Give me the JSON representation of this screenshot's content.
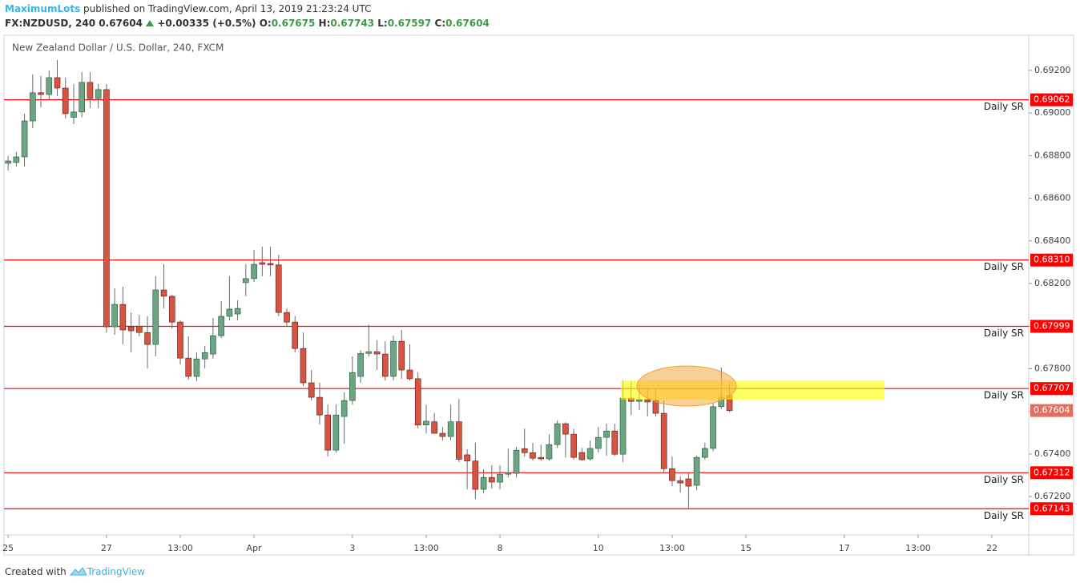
{
  "header": {
    "publisher": "MaximumLots",
    "published": "published on TradingView.com, April 13, 2019 21:23:24 UTC",
    "symbol": "FX:NZDUSD, 240",
    "price": "0.67604",
    "change": "+0.00335 (+0.5%)",
    "open_label": "O:",
    "open": "0.67675",
    "high_label": "H:",
    "high": "0.67743",
    "low_label": "L:",
    "low": "0.67597",
    "close_label": "C:",
    "close": "0.67604"
  },
  "chart_data": {
    "type": "candlestick",
    "title": "New Zealand Dollar / U.S. Dollar, 240, FXCM",
    "categories": [
      "25",
      null,
      null,
      null,
      null,
      null,
      null,
      null,
      null,
      null,
      null,
      null,
      "27",
      null,
      null,
      null,
      null,
      null,
      null,
      null,
      null,
      "13:00",
      null,
      null,
      null,
      null,
      null,
      null,
      null,
      null,
      "Apr",
      null,
      null,
      null,
      null,
      null,
      null,
      null,
      null,
      null,
      null,
      null,
      "3",
      null,
      null,
      null,
      null,
      null,
      null,
      null,
      null,
      "13:00",
      null,
      null,
      null,
      null,
      null,
      null,
      null,
      null,
      "8",
      null,
      null,
      null,
      null,
      null,
      null,
      null,
      null,
      null,
      null,
      null,
      "10",
      null,
      null,
      null,
      null,
      null,
      null,
      null,
      null,
      "13:00",
      null,
      null,
      null,
      null,
      null,
      null,
      null,
      null,
      "15",
      null,
      null,
      null,
      null,
      null,
      null,
      null,
      null,
      null,
      null,
      null,
      "17",
      null,
      null,
      null,
      null,
      null,
      null,
      null,
      null,
      "13:00",
      null,
      null,
      null,
      null,
      null,
      null,
      null,
      null,
      "22",
      null,
      null,
      null,
      null
    ],
    "open": [
      0.68764,
      0.68768,
      0.68794,
      0.68963,
      0.69095,
      0.69087,
      0.69166,
      0.69117,
      0.6898,
      0.69005,
      0.69144,
      0.69068,
      0.6911,
      0.67997,
      0.68102,
      0.67997,
      0.68,
      0.6797,
      0.67914,
      0.6817,
      0.6814,
      0.68019,
      0.6785,
      0.67764,
      0.67846,
      0.67869,
      0.67955,
      0.68046,
      0.68057,
      0.68204,
      0.68223,
      0.68298,
      0.68294,
      0.68287,
      0.68064,
      0.68019,
      0.67895,
      0.67734,
      0.67666,
      0.67583,
      0.67418,
      0.67576,
      0.67651,
      0.67764,
      0.67872,
      0.6788,
      0.67869,
      0.67764,
      0.67929,
      0.67794,
      0.67753,
      0.67536,
      0.67551,
      0.67497,
      0.67482,
      0.67551,
      0.67396,
      0.67367,
      0.67234,
      0.6729,
      0.67268,
      0.67305,
      0.67309,
      0.67425,
      0.67406,
      0.67384,
      0.67377,
      0.67444,
      0.67542,
      0.67493,
      0.67407,
      0.67377,
      0.67426,
      0.67478,
      0.67508,
      0.67399,
      0.67662,
      0.67647,
      0.67655,
      0.67651,
      0.67591,
      0.67331,
      0.67275,
      0.67283,
      0.67253,
      0.67384,
      0.67426,
      0.67622,
      0.67675,
      null,
      null,
      null,
      null,
      null,
      null,
      null,
      null,
      null,
      null,
      null,
      null,
      null,
      null,
      null,
      null,
      null,
      null,
      null,
      null,
      null,
      null,
      null,
      null,
      null,
      null,
      null,
      null,
      null,
      null,
      null,
      null,
      null,
      null,
      null,
      null
    ],
    "high": [
      0.68798,
      0.68817,
      0.68997,
      0.69181,
      0.69174,
      0.692,
      0.69249,
      0.69166,
      0.69136,
      0.69192,
      0.69192,
      0.69136,
      0.69136,
      0.68177,
      0.68185,
      0.68064,
      0.68053,
      0.68046,
      0.68234,
      0.6829,
      0.68147,
      0.68027,
      0.67952,
      0.67876,
      0.67907,
      0.68038,
      0.68117,
      0.68234,
      0.68121,
      0.6829,
      0.68358,
      0.68373,
      0.68373,
      0.68335,
      0.68083,
      0.68046,
      0.6797,
      0.67794,
      0.67734,
      0.67632,
      0.67632,
      0.67689,
      0.67858,
      0.67887,
      0.68008,
      0.67933,
      0.67929,
      0.67955,
      0.67982,
      0.67915,
      0.67783,
      0.67632,
      0.67593,
      0.67527,
      0.67632,
      0.67658,
      0.67422,
      0.67452,
      0.67328,
      0.67347,
      0.67347,
      0.67425,
      0.67433,
      0.67519,
      0.67452,
      0.67444,
      0.67493,
      0.67557,
      0.67549,
      0.67519,
      0.67429,
      0.67463,
      0.67527,
      0.67542,
      0.67542,
      0.67745,
      0.67741,
      0.67726,
      0.67707,
      0.67707,
      0.67651,
      0.67388,
      0.67294,
      0.67312,
      0.67392,
      0.67452,
      0.6764,
      0.67805,
      0.67743,
      null,
      null,
      null,
      null,
      null,
      null,
      null,
      null,
      null,
      null,
      null,
      null,
      null,
      null,
      null,
      null,
      null,
      null,
      null,
      null,
      null,
      null,
      null,
      null,
      null,
      null,
      null,
      null,
      null,
      null,
      null,
      null,
      null,
      null,
      null,
      null
    ],
    "low": [
      0.6873,
      0.68749,
      0.68749,
      0.68929,
      0.69027,
      0.69061,
      0.6908,
      0.68974,
      0.68948,
      0.6898,
      0.69023,
      0.69023,
      0.6797,
      0.67959,
      0.67914,
      0.67876,
      0.67952,
      0.67801,
      0.67858,
      0.68083,
      0.67989,
      0.6782,
      0.67749,
      0.67741,
      0.67801,
      0.67846,
      0.67944,
      0.68027,
      0.68027,
      0.6814,
      0.68207,
      0.68234,
      0.68234,
      0.68046,
      0.67997,
      0.67876,
      0.67719,
      0.67651,
      0.67538,
      0.67388,
      0.67407,
      0.67448,
      0.67632,
      0.67734,
      0.67858,
      0.67794,
      0.67745,
      0.67745,
      0.67753,
      0.67745,
      0.6752,
      0.67497,
      0.67497,
      0.67463,
      0.67463,
      0.67362,
      0.67234,
      0.67189,
      0.67215,
      0.67237,
      0.67234,
      0.6729,
      0.6729,
      0.67388,
      0.67369,
      0.67369,
      0.67369,
      0.67429,
      0.67384,
      0.67373,
      0.67369,
      0.67369,
      0.67407,
      0.67392,
      0.67392,
      0.67362,
      0.67583,
      0.67606,
      0.67576,
      0.67576,
      0.67312,
      0.67249,
      0.67219,
      0.67147,
      0.6723,
      0.67373,
      0.67414,
      0.6761,
      0.67597,
      null,
      null,
      null,
      null,
      null,
      null,
      null,
      null,
      null,
      null,
      null,
      null,
      null,
      null,
      null,
      null,
      null,
      null,
      null,
      null,
      null,
      null,
      null,
      null,
      null,
      null,
      null,
      null,
      null,
      null,
      null,
      null,
      null,
      null,
      null,
      null
    ],
    "close": [
      0.68775,
      0.68794,
      0.68963,
      0.69095,
      0.69087,
      0.69166,
      0.69117,
      0.68997,
      0.69005,
      0.69144,
      0.69068,
      0.6911,
      0.67997,
      0.68102,
      0.67982,
      0.67978,
      0.6797,
      0.67914,
      0.6817,
      0.6814,
      0.68019,
      0.6785,
      0.67764,
      0.67846,
      0.67876,
      0.67955,
      0.68046,
      0.6808,
      0.68083,
      0.68223,
      0.6829,
      0.6829,
      0.68287,
      0.68064,
      0.68019,
      0.67895,
      0.67734,
      0.67666,
      0.67583,
      0.67418,
      0.67583,
      0.67651,
      0.67782,
      0.67872,
      0.6788,
      0.67869,
      0.67764,
      0.67929,
      0.67794,
      0.67753,
      0.67536,
      0.67554,
      0.67497,
      0.67482,
      0.67551,
      0.67375,
      0.67367,
      0.67234,
      0.6729,
      0.67268,
      0.67305,
      0.67312,
      0.67418,
      0.67406,
      0.6738,
      0.67377,
      0.67444,
      0.67542,
      0.67493,
      0.67384,
      0.67373,
      0.67426,
      0.67478,
      0.67508,
      0.67399,
      0.67662,
      0.67647,
      0.67655,
      0.67644,
      0.67591,
      0.67331,
      0.67275,
      0.67264,
      0.67249,
      0.67384,
      0.67426,
      0.67622,
      0.67666,
      0.67604,
      null,
      null,
      null,
      null,
      null,
      null,
      null,
      null,
      null,
      null,
      null,
      null,
      null,
      null,
      null,
      null,
      null,
      null,
      null,
      null,
      null,
      null,
      null,
      null,
      null,
      null,
      null,
      null,
      null,
      null,
      null,
      null,
      null,
      null,
      null,
      null
    ],
    "up_color": "#6ba583",
    "down_color": "#d75442",
    "ylim": [
      0.6702,
      0.69365
    ],
    "yticks": [
      {
        "value": 0.672,
        "label": "0.67200"
      },
      {
        "value": 0.674,
        "label": "0.67400"
      },
      {
        "value": 0.676,
        "label": "0.67600"
      },
      {
        "value": 0.678,
        "label": "0.67800"
      },
      {
        "value": 0.68,
        "label": "0.68000"
      },
      {
        "value": 0.682,
        "label": "0.68200"
      },
      {
        "value": 0.684,
        "label": "0.68400"
      },
      {
        "value": 0.686,
        "label": "0.68600"
      },
      {
        "value": 0.688,
        "label": "0.68800"
      },
      {
        "value": 0.69,
        "label": "0.69000"
      },
      {
        "value": 0.692,
        "label": "0.69200"
      }
    ],
    "grid": false,
    "levels": {
      "values": [
        0.69062,
        0.6831,
        0.67999,
        0.67707,
        0.67312,
        0.67143
      ],
      "value_labels": [
        "0.69062",
        "0.68310",
        "0.67999",
        "0.67707",
        "0.67312",
        "0.67143"
      ],
      "names": [
        "Daily SR",
        "Daily SR",
        "Daily SR",
        "Daily SR",
        "Daily SR",
        "Daily SR"
      ],
      "color": "#ff0000"
    },
    "last_price": 0.67604,
    "last_color": "#e0705f"
  },
  "footer": {
    "created_with": "Created with",
    "brand": "TradingView"
  }
}
